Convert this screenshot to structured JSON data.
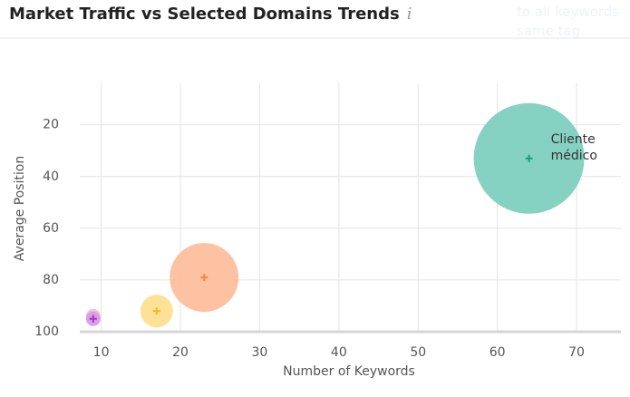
{
  "title": "Market Traffic vs Selected Domains Trends",
  "info_icon": "i",
  "background_text": [
    "to all keywords",
    "same tag."
  ],
  "chart_data": {
    "type": "bubble",
    "x_label": "Number of Keywords",
    "y_label": "Average Position",
    "xlim": [
      7.3,
      75.6
    ],
    "ylim": [
      100,
      4
    ],
    "xticks": [
      10,
      20,
      30,
      40,
      50,
      60,
      70
    ],
    "yticks": [
      20,
      40,
      60,
      80,
      100
    ],
    "grid": true,
    "x": [
      64,
      23,
      17,
      9,
      9
    ],
    "values": [
      33,
      79,
      92,
      94,
      95
    ],
    "sizes": [
      3721,
      1444,
      324,
      64,
      64
    ],
    "colors": [
      "#7fd0bf",
      "#fdbf9c",
      "#fde08f",
      "#f5bccb",
      "#d89bea"
    ],
    "marker_colors": [
      "#1a9e7a",
      "#f08a3c",
      "#f5b625",
      "#e46a8f",
      "#a33bc7"
    ],
    "point_labels": [
      "Cliente médico",
      null,
      null,
      null,
      null
    ]
  }
}
